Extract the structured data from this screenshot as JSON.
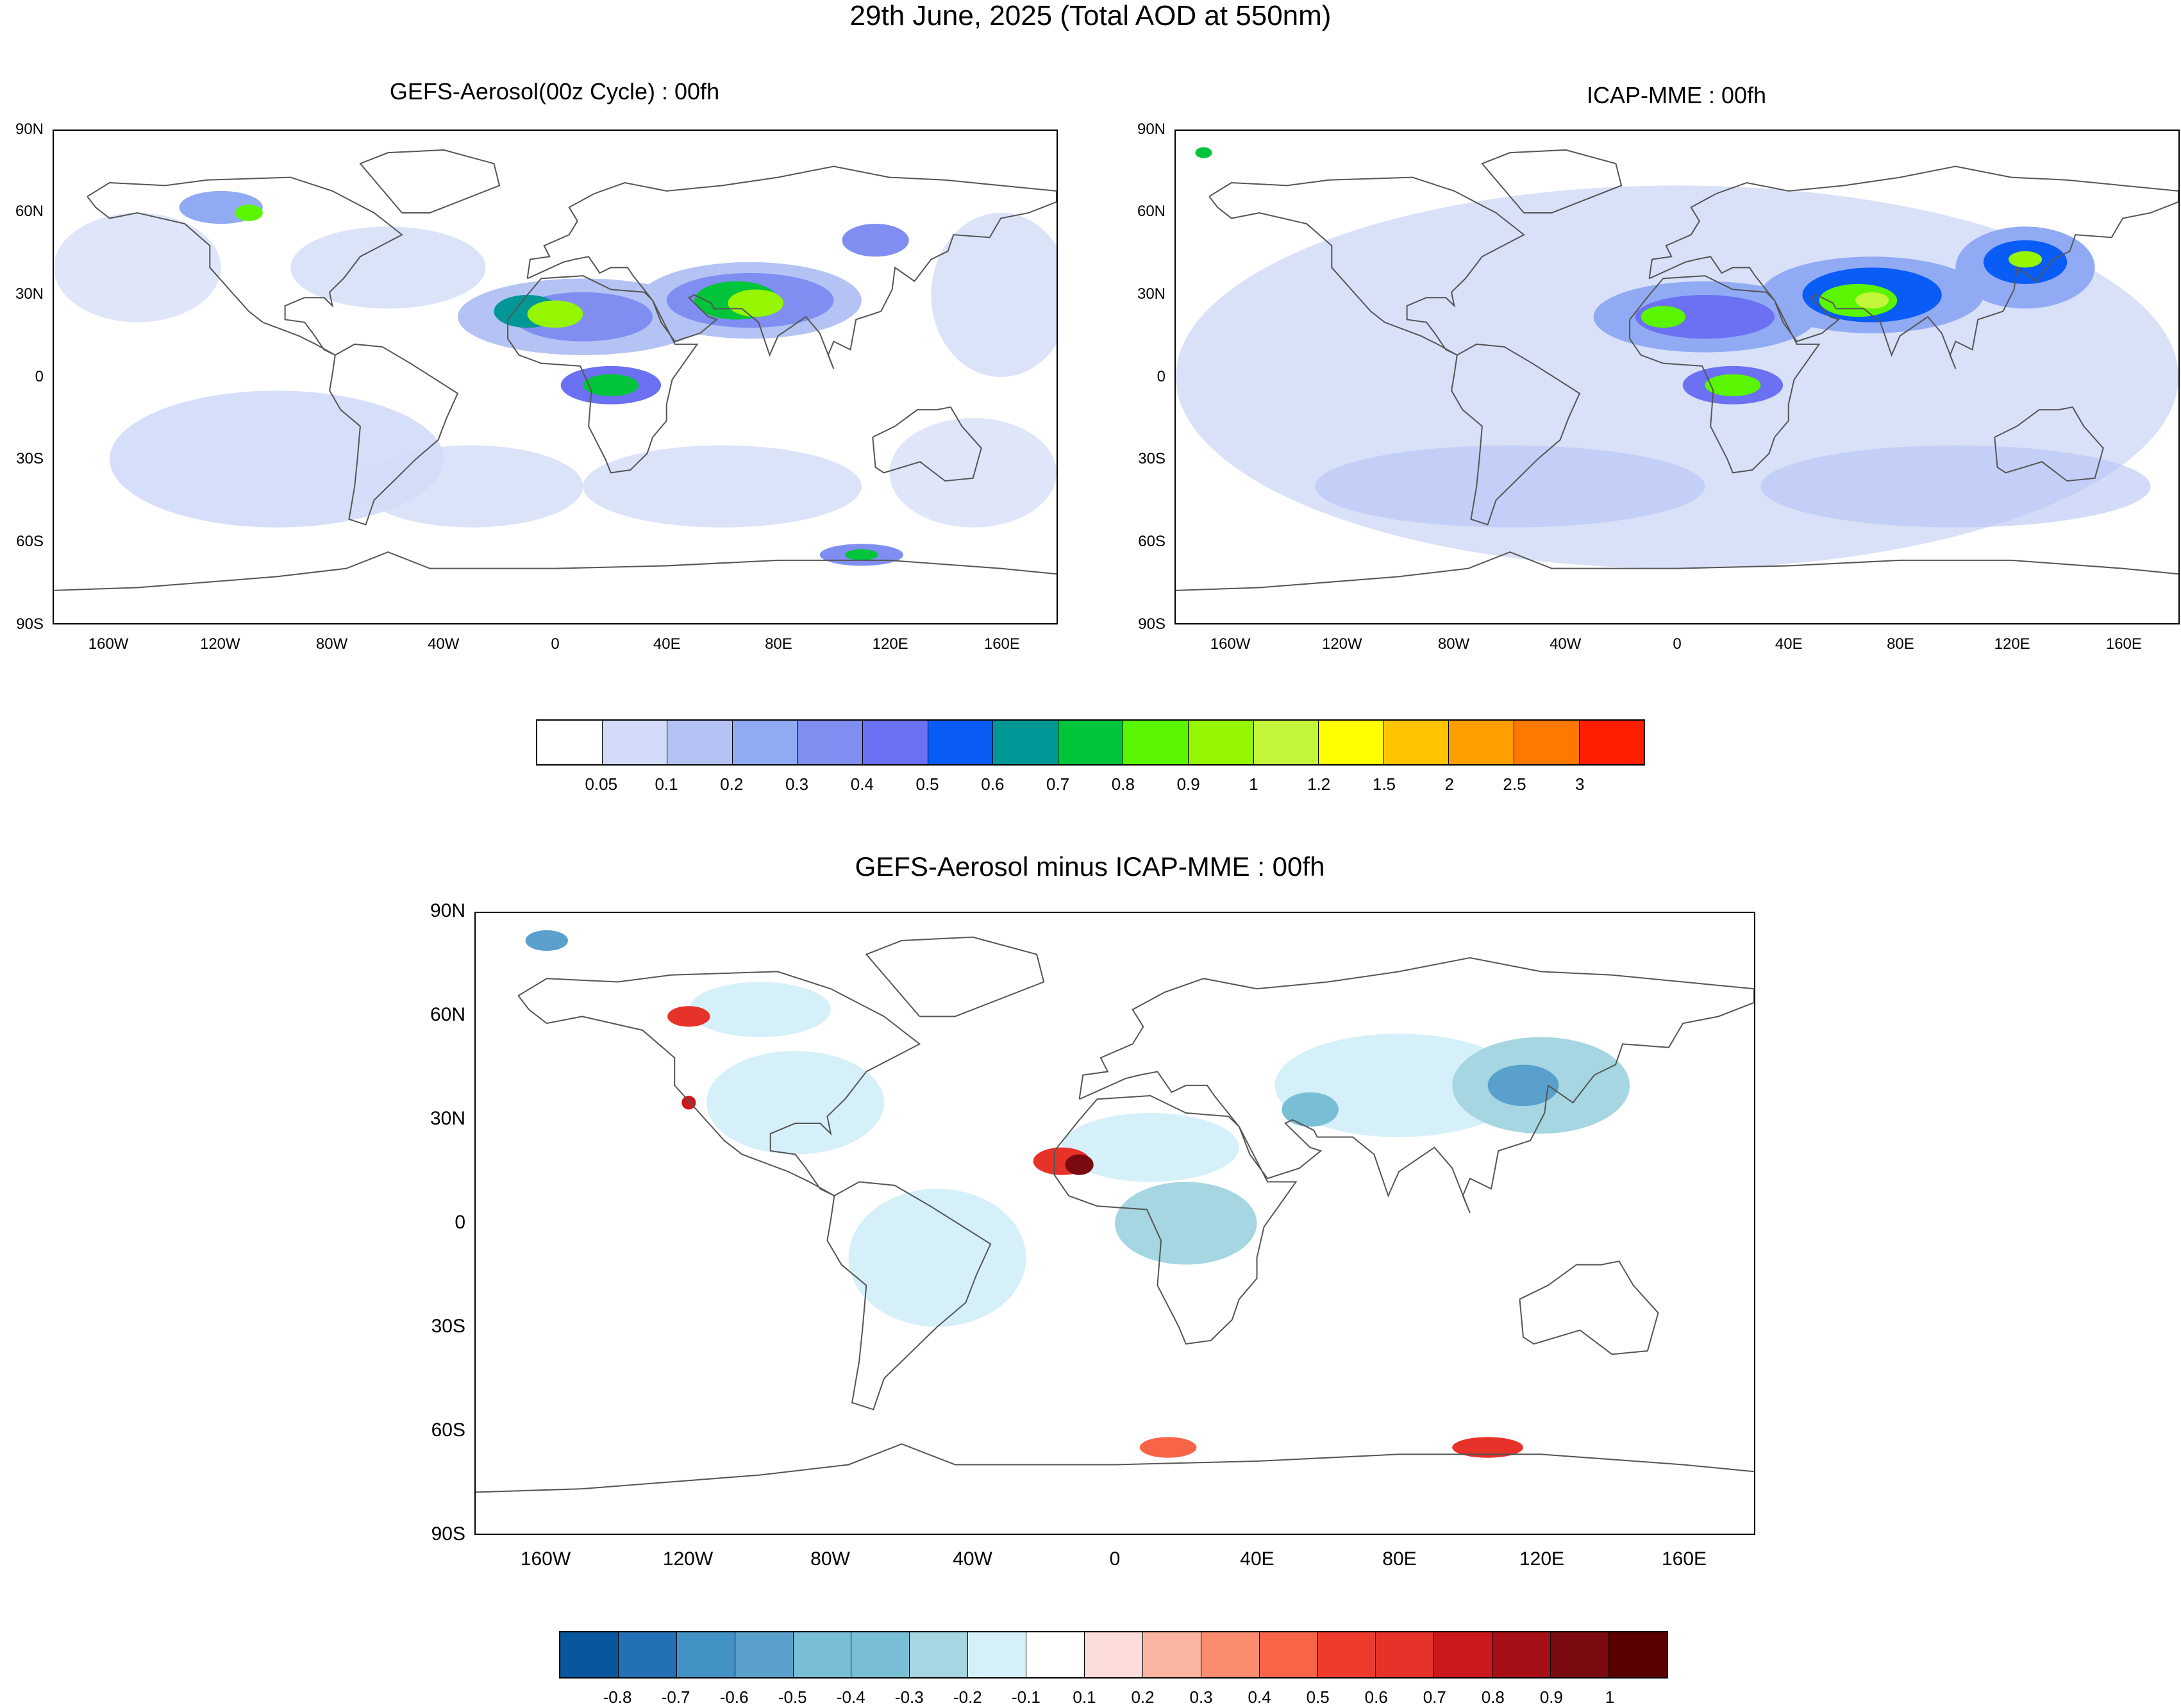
{
  "figure_title": "29th June, 2025 (Total AOD at 550nm)",
  "panels": {
    "gefs": {
      "title": "GEFS-Aerosol(00z Cycle) : 00fh"
    },
    "icap": {
      "title": "ICAP-MME : 00fh"
    },
    "diff": {
      "title": "GEFS-Aerosol minus ICAP-MME : 00fh"
    }
  },
  "lat_labels": [
    "90N",
    "60N",
    "30N",
    "0",
    "30S",
    "60S",
    "90S"
  ],
  "lon_labels": [
    "160W",
    "120W",
    "80W",
    "40W",
    "0",
    "40E",
    "80E",
    "120E",
    "160E"
  ],
  "aod_colorbar": {
    "colors": [
      "#ffffff",
      "#d2dcf8",
      "#b4c3f4",
      "#91aaf4",
      "#7f8ef0",
      "#6b71f2",
      "#0a5cf7",
      "#009797",
      "#00c43a",
      "#5af500",
      "#96f500",
      "#c3f53a",
      "#ffff00",
      "#ffc300",
      "#ff9e00",
      "#ff7800",
      "#ff1e00"
    ],
    "labels": [
      "0.05",
      "0.1",
      "0.2",
      "0.3",
      "0.4",
      "0.5",
      "0.6",
      "0.7",
      "0.8",
      "0.9",
      "1",
      "1.2",
      "1.5",
      "2",
      "2.5",
      "3"
    ]
  },
  "diff_colorbar": {
    "colors": [
      "#08569b",
      "#2271b5",
      "#4292c6",
      "#5aa0cd",
      "#78bfd6",
      "#78bfd6",
      "#a5d6e1",
      "#d6f0fa",
      "#ffffff",
      "#fddcdc",
      "#fbb4a0",
      "#fb8c6e",
      "#f76446",
      "#ef3b2c",
      "#e63228",
      "#cb181d",
      "#a50f15",
      "#7a0a0f",
      "#5a0000"
    ],
    "labels": [
      "-0.8",
      "-0.7",
      "-0.6",
      "-0.5",
      "-0.4",
      "-0.3",
      "-0.2",
      "-0.1",
      "0.1",
      "0.2",
      "0.3",
      "0.4",
      "0.5",
      "0.6",
      "0.7",
      "0.8",
      "0.9",
      "1"
    ]
  }
}
